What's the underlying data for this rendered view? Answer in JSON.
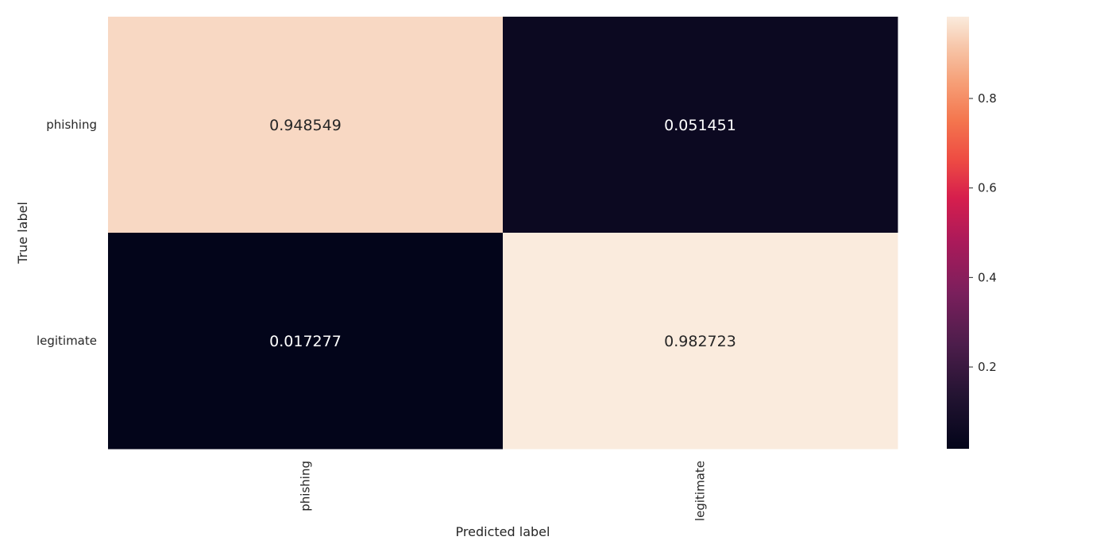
{
  "chart_data": {
    "type": "heatmap",
    "title": "",
    "xlabel": "Predicted label",
    "ylabel": "True label",
    "x_categories": [
      "phishing",
      "legitimate"
    ],
    "y_categories": [
      "phishing",
      "legitimate"
    ],
    "values": [
      [
        0.948549,
        0.051451
      ],
      [
        0.017277,
        0.982723
      ]
    ],
    "value_labels": [
      [
        "0.948549",
        "0.051451"
      ],
      [
        "0.017277",
        "0.982723"
      ]
    ],
    "colormap": "rocket",
    "colorbar": {
      "vmin": 0.017277,
      "vmax": 0.982723,
      "ticks": [
        0.2,
        0.4,
        0.6,
        0.8
      ],
      "tick_labels": [
        "0.2",
        "0.4",
        "0.6",
        "0.8"
      ]
    },
    "grid": false,
    "legend": "colorbar-right"
  }
}
